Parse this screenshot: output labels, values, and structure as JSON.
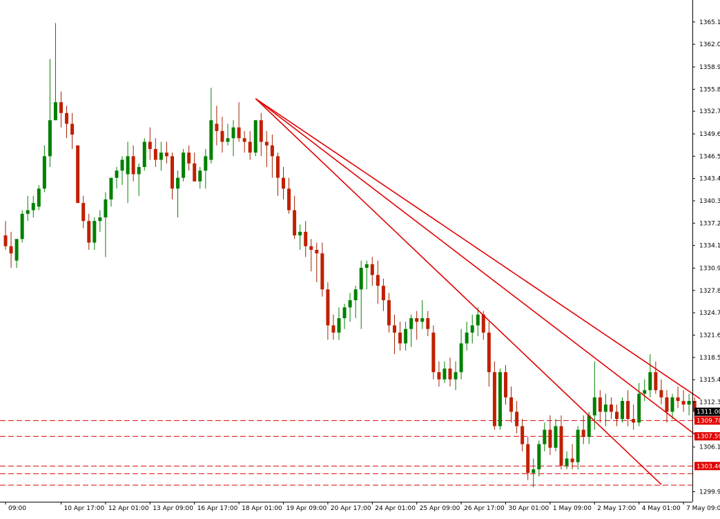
{
  "chart_data": {
    "type": "candlestick",
    "title": "",
    "xlabel": "",
    "ylabel": "",
    "ylim": [
      1298.5,
      1368.2
    ],
    "y_ticks": [
      "1365.15",
      "1362.05",
      "1358.90",
      "1355.80",
      "1352.75",
      "1349.60",
      "1346.50",
      "1343.40",
      "1340.30",
      "1337.20",
      "1334.10",
      "1330.95",
      "1327.85",
      "1324.75",
      "1321.65",
      "1318.55",
      "1315.45",
      "1312.35",
      "1306.10",
      "1299.90"
    ],
    "x_ticks": [
      "09:00",
      "10 Apr 17:00",
      "12 Apr 01:00",
      "13 Apr 09:00",
      "16 Apr 17:00",
      "18 Apr 01:00",
      "19 Apr 09:00",
      "20 Apr 17:00",
      "24 Apr 01:00",
      "25 Apr 09:00",
      "26 Apr 17:00",
      "30 Apr 01:00",
      "1 May 09:00",
      "2 May 17:00",
      "4 May 01:00",
      "7 May 09:00"
    ],
    "x_tick_bar_index": [
      0,
      10,
      18,
      26,
      34,
      42,
      50,
      58,
      66,
      74,
      82,
      90,
      98,
      106,
      114,
      122
    ],
    "current_price": "1311.00",
    "levels": [
      {
        "value": 1309.78,
        "label": "1309.78"
      },
      {
        "value": 1307.59,
        "label": "1307.59"
      },
      {
        "value": 1303.46,
        "label": "1303.46"
      },
      {
        "value": 1302.4,
        "label": ""
      },
      {
        "value": 1300.8,
        "label": ""
      }
    ],
    "trendlines": [
      {
        "from": [
          45,
          1354.5
        ],
        "to": [
          118,
          1300.9
        ]
      },
      {
        "from": [
          45,
          1354.5
        ],
        "to": [
          125,
          1307.3
        ]
      },
      {
        "from": [
          45,
          1354.5
        ],
        "to": [
          125,
          1312.8
        ]
      }
    ],
    "candles": [
      [
        1335.5,
        1337.5,
        1333.5,
        1334.0
      ],
      [
        1334.0,
        1336.0,
        1331.0,
        1333.0
      ],
      [
        1332.0,
        1335.0,
        1331.0,
        1335.0
      ],
      [
        1335.0,
        1339.0,
        1334.5,
        1338.5
      ],
      [
        1338.5,
        1341.0,
        1337.5,
        1339.0
      ],
      [
        1339.0,
        1341.0,
        1338.0,
        1340.0
      ],
      [
        1339.5,
        1342.5,
        1339.0,
        1342.0
      ],
      [
        1342.0,
        1348.0,
        1341.5,
        1346.5
      ],
      [
        1346.5,
        1360.0,
        1345.0,
        1351.5
      ],
      [
        1351.5,
        1365.0,
        1351.5,
        1354.0
      ],
      [
        1354.0,
        1355.5,
        1350.5,
        1352.5
      ],
      [
        1352.5,
        1353.5,
        1349.0,
        1351.0
      ],
      [
        1351.0,
        1352.5,
        1347.5,
        1349.5
      ],
      [
        1348.0,
        1348.0,
        1340.0,
        1340.0
      ],
      [
        1340.0,
        1341.0,
        1336.5,
        1337.5
      ],
      [
        1337.5,
        1338.5,
        1333.5,
        1334.5
      ],
      [
        1334.5,
        1338.0,
        1333.5,
        1337.5
      ],
      [
        1337.5,
        1339.0,
        1336.0,
        1338.0
      ],
      [
        1338.0,
        1341.5,
        1332.5,
        1340.5
      ],
      [
        1340.5,
        1343.5,
        1339.5,
        1343.5
      ],
      [
        1343.5,
        1345.0,
        1342.0,
        1344.5
      ],
      [
        1344.5,
        1346.5,
        1342.5,
        1346.0
      ],
      [
        1344.0,
        1348.5,
        1340.0,
        1346.5
      ],
      [
        1346.5,
        1348.0,
        1343.0,
        1344.0
      ],
      [
        1344.0,
        1345.5,
        1341.0,
        1345.0
      ],
      [
        1345.0,
        1349.0,
        1344.5,
        1348.5
      ],
      [
        1348.5,
        1350.5,
        1346.0,
        1347.5
      ],
      [
        1347.5,
        1349.0,
        1345.0,
        1346.0
      ],
      [
        1346.0,
        1348.5,
        1344.5,
        1347.0
      ],
      [
        1347.0,
        1348.5,
        1345.5,
        1346.5
      ],
      [
        1346.5,
        1347.0,
        1340.5,
        1342.0
      ],
      [
        1342.0,
        1344.5,
        1338.0,
        1343.5
      ],
      [
        1343.5,
        1347.5,
        1343.0,
        1347.0
      ],
      [
        1347.0,
        1348.0,
        1344.5,
        1345.5
      ],
      [
        1345.5,
        1347.0,
        1343.0,
        1343.0
      ],
      [
        1343.0,
        1345.0,
        1342.0,
        1344.5
      ],
      [
        1344.5,
        1347.5,
        1342.0,
        1346.5
      ],
      [
        1346.0,
        1356.0,
        1345.5,
        1351.5
      ],
      [
        1351.0,
        1353.5,
        1348.0,
        1350.0
      ],
      [
        1350.0,
        1352.0,
        1347.0,
        1348.5
      ],
      [
        1348.5,
        1351.0,
        1348.0,
        1349.0
      ],
      [
        1349.0,
        1351.5,
        1346.5,
        1350.5
      ],
      [
        1350.5,
        1354.0,
        1348.5,
        1349.0
      ],
      [
        1349.0,
        1350.0,
        1347.0,
        1348.5
      ],
      [
        1348.5,
        1350.0,
        1346.0,
        1347.0
      ],
      [
        1347.0,
        1351.5,
        1346.5,
        1351.5
      ],
      [
        1351.5,
        1352.5,
        1346.5,
        1348.5
      ],
      [
        1348.5,
        1350.0,
        1345.0,
        1348.0
      ],
      [
        1348.0,
        1349.5,
        1343.5,
        1346.5
      ],
      [
        1346.5,
        1347.0,
        1341.0,
        1343.5
      ],
      [
        1343.5,
        1345.0,
        1340.5,
        1342.0
      ],
      [
        1342.0,
        1343.5,
        1338.5,
        1339.0
      ],
      [
        1339.0,
        1341.0,
        1335.0,
        1335.5
      ],
      [
        1335.5,
        1337.0,
        1333.5,
        1336.0
      ],
      [
        1336.0,
        1337.5,
        1332.5,
        1334.0
      ],
      [
        1334.0,
        1335.0,
        1330.5,
        1333.5
      ],
      [
        1333.5,
        1334.5,
        1329.0,
        1333.0
      ],
      [
        1333.0,
        1334.5,
        1327.0,
        1328.0
      ],
      [
        1328.0,
        1329.0,
        1321.0,
        1323.0
      ],
      [
        1323.0,
        1324.5,
        1321.0,
        1322.0
      ],
      [
        1322.0,
        1325.5,
        1321.0,
        1324.0
      ],
      [
        1324.0,
        1326.0,
        1322.5,
        1325.5
      ],
      [
        1325.5,
        1327.5,
        1323.5,
        1326.5
      ],
      [
        1326.5,
        1328.5,
        1324.0,
        1328.0
      ],
      [
        1328.0,
        1332.0,
        1322.5,
        1331.0
      ],
      [
        1331.0,
        1332.0,
        1328.0,
        1331.5
      ],
      [
        1331.5,
        1332.5,
        1328.5,
        1330.0
      ],
      [
        1330.0,
        1332.0,
        1326.0,
        1328.5
      ],
      [
        1328.5,
        1329.5,
        1325.0,
        1326.5
      ],
      [
        1326.5,
        1327.5,
        1322.0,
        1323.0
      ],
      [
        1323.0,
        1324.5,
        1319.0,
        1322.0
      ],
      [
        1322.0,
        1323.5,
        1319.5,
        1320.5
      ],
      [
        1320.5,
        1323.5,
        1319.5,
        1322.5
      ],
      [
        1322.5,
        1324.5,
        1320.0,
        1324.0
      ],
      [
        1324.0,
        1325.0,
        1321.0,
        1323.5
      ],
      [
        1323.5,
        1326.5,
        1322.5,
        1324.0
      ],
      [
        1324.0,
        1325.0,
        1321.5,
        1322.5
      ],
      [
        1322.0,
        1323.0,
        1315.5,
        1316.5
      ],
      [
        1316.5,
        1318.0,
        1314.5,
        1315.5
      ],
      [
        1315.5,
        1318.0,
        1315.0,
        1317.0
      ],
      [
        1317.0,
        1318.5,
        1314.5,
        1315.5
      ],
      [
        1315.5,
        1318.0,
        1314.0,
        1316.5
      ],
      [
        1316.5,
        1322.5,
        1315.5,
        1320.5
      ],
      [
        1320.5,
        1323.5,
        1319.5,
        1322.0
      ],
      [
        1322.0,
        1324.5,
        1320.5,
        1323.0
      ],
      [
        1323.0,
        1325.5,
        1321.5,
        1324.5
      ],
      [
        1324.5,
        1325.0,
        1321.0,
        1322.0
      ],
      [
        1322.0,
        1323.5,
        1314.5,
        1316.5
      ],
      [
        1316.5,
        1318.0,
        1308.5,
        1309.0
      ],
      [
        1309.0,
        1317.0,
        1308.5,
        1316.5
      ],
      [
        1316.5,
        1317.5,
        1312.0,
        1313.0
      ],
      [
        1313.0,
        1314.5,
        1309.5,
        1311.0
      ],
      [
        1311.0,
        1312.5,
        1308.0,
        1309.0
      ],
      [
        1309.0,
        1310.0,
        1305.5,
        1306.5
      ],
      [
        1306.5,
        1307.5,
        1301.5,
        1302.5
      ],
      [
        1302.5,
        1304.5,
        1300.5,
        1303.0
      ],
      [
        1303.0,
        1307.0,
        1302.0,
        1306.5
      ],
      [
        1306.5,
        1309.5,
        1305.5,
        1308.5
      ],
      [
        1308.5,
        1310.5,
        1305.0,
        1306.0
      ],
      [
        1306.0,
        1310.0,
        1305.5,
        1309.0
      ],
      [
        1309.0,
        1310.5,
        1303.0,
        1303.5
      ],
      [
        1303.5,
        1305.5,
        1303.0,
        1304.5
      ],
      [
        1304.5,
        1306.5,
        1303.0,
        1304.0
      ],
      [
        1304.0,
        1309.0,
        1303.0,
        1308.5
      ],
      [
        1308.5,
        1310.5,
        1306.5,
        1307.5
      ],
      [
        1307.5,
        1311.0,
        1306.5,
        1310.5
      ],
      [
        1310.5,
        1318.0,
        1308.5,
        1313.0
      ],
      [
        1313.0,
        1314.0,
        1309.5,
        1311.0
      ],
      [
        1311.0,
        1313.5,
        1309.0,
        1312.0
      ],
      [
        1312.0,
        1313.0,
        1310.0,
        1311.0
      ],
      [
        1311.0,
        1312.0,
        1309.0,
        1310.0
      ],
      [
        1310.0,
        1313.0,
        1309.5,
        1312.5
      ],
      [
        1312.5,
        1314.0,
        1309.0,
        1310.0
      ],
      [
        1310.0,
        1312.0,
        1308.5,
        1309.5
      ],
      [
        1309.5,
        1315.0,
        1309.0,
        1313.5
      ],
      [
        1313.5,
        1315.5,
        1312.5,
        1314.0
      ],
      [
        1314.0,
        1319.0,
        1313.0,
        1316.5
      ],
      [
        1316.5,
        1318.0,
        1313.5,
        1314.0
      ],
      [
        1314.0,
        1315.5,
        1312.0,
        1313.0
      ],
      [
        1313.0,
        1314.0,
        1309.5,
        1311.0
      ],
      [
        1311.0,
        1313.5,
        1310.0,
        1313.0
      ],
      [
        1313.0,
        1314.5,
        1311.5,
        1312.5
      ],
      [
        1312.5,
        1314.0,
        1311.0,
        1312.0
      ],
      [
        1312.0,
        1313.5,
        1310.5,
        1312.5
      ],
      [
        1312.5,
        1313.0,
        1310.0,
        1311.0
      ]
    ]
  },
  "colors": {
    "background": "#ffffff",
    "bull": "#008000",
    "bear": "#c02000",
    "wick_bull": "#008000",
    "wick_bear": "#a02000",
    "trendline": "#e00000",
    "level_line": "#e00000",
    "level_label_bg": "#e00000",
    "current_label_bg": "#000000",
    "axis": "#000000",
    "text": "#000000"
  }
}
